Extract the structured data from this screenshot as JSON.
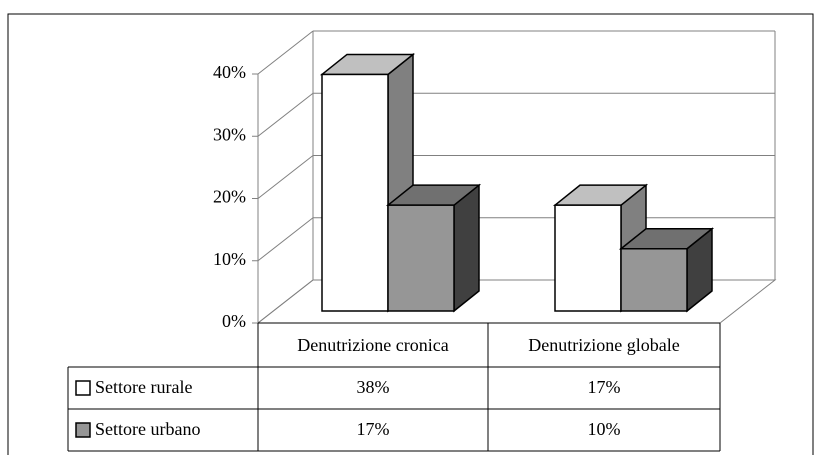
{
  "chart_data": {
    "type": "bar3d",
    "categories": [
      "Denutrizione cronica",
      "Denutrizione globale"
    ],
    "series": [
      {
        "name": "Settore rurale",
        "color": "#ffffff",
        "values": [
          38,
          17
        ],
        "value_labels": [
          "38%",
          "17%"
        ]
      },
      {
        "name": "Settore urbano",
        "color": "#969696",
        "values": [
          17,
          10
        ],
        "value_labels": [
          "17%",
          "10%"
        ]
      }
    ],
    "ylim": [
      0,
      40
    ],
    "yticks": [
      {
        "value": 0,
        "label": "0%"
      },
      {
        "value": 10,
        "label": "10%"
      },
      {
        "value": 20,
        "label": "20%"
      },
      {
        "value": 30,
        "label": "30%"
      },
      {
        "value": 40,
        "label": "40%"
      }
    ],
    "grid": true,
    "legend": "table"
  }
}
